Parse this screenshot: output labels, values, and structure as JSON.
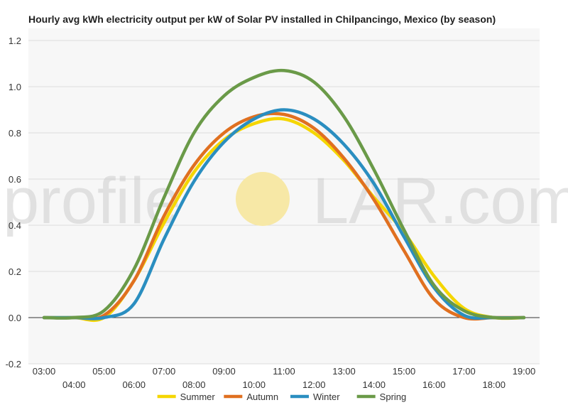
{
  "chart_data": {
    "type": "line",
    "title": "Hourly avg kWh electricity output per kW of Solar PV installed in Chilpancingo, Mexico (by season)",
    "xlabel": "",
    "ylabel": "",
    "x": [
      "03:00",
      "04:00",
      "05:00",
      "06:00",
      "07:00",
      "08:00",
      "09:00",
      "10:00",
      "11:00",
      "12:00",
      "13:00",
      "14:00",
      "15:00",
      "16:00",
      "17:00",
      "18:00",
      "19:00"
    ],
    "xlim_hours": [
      3,
      19
    ],
    "ylim": [
      -0.2,
      1.2
    ],
    "yticks": [
      "-0.2",
      "0.0",
      "0.2",
      "0.4",
      "0.6",
      "0.8",
      "1.0",
      "1.2"
    ],
    "grid": true,
    "legend_position": "bottom",
    "series": [
      {
        "name": "Summer",
        "color": "#f5d600",
        "values": [
          0,
          0,
          0,
          0.16,
          0.41,
          0.63,
          0.77,
          0.84,
          0.86,
          0.8,
          0.68,
          0.52,
          0.37,
          0.18,
          0.04,
          0,
          0
        ]
      },
      {
        "name": "Autumn",
        "color": "#e07020",
        "values": [
          0,
          0,
          0.01,
          0.16,
          0.44,
          0.66,
          0.8,
          0.87,
          0.88,
          0.82,
          0.69,
          0.51,
          0.29,
          0.08,
          0,
          0,
          0
        ]
      },
      {
        "name": "Winter",
        "color": "#2a8ec0",
        "values": [
          0,
          0,
          0,
          0.06,
          0.34,
          0.59,
          0.76,
          0.86,
          0.9,
          0.86,
          0.75,
          0.58,
          0.35,
          0.13,
          0.01,
          0,
          0
        ]
      },
      {
        "name": "Spring",
        "color": "#6a9a48",
        "values": [
          0,
          0,
          0.03,
          0.21,
          0.52,
          0.8,
          0.96,
          1.04,
          1.07,
          1.02,
          0.87,
          0.64,
          0.38,
          0.14,
          0.03,
          0,
          0
        ]
      }
    ]
  },
  "watermark": {
    "left": "profile",
    "right": "LAR.com",
    "sun_color": "#f7e8a6"
  }
}
